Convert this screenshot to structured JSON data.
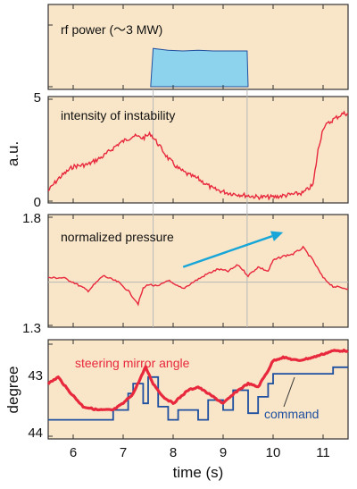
{
  "colors": {
    "panel_bg": "#f9e6c8",
    "red": "#e8283c",
    "blue": "#1f4fa0",
    "fill_blue": "#8ed3ee",
    "arrow": "#18a6d8",
    "guide": "#b8b8b8"
  },
  "chart_data": [
    {
      "type": "area",
      "annotation": "rf power (〜3 MW)",
      "xlim": [
        5.5,
        11.5
      ],
      "ylim": [
        0,
        5
      ],
      "series": [
        {
          "x": [
            7.55,
            7.6,
            7.9,
            8.2,
            8.5,
            8.8,
            9.2,
            9.48,
            9.5
          ],
          "y": [
            0,
            3.1,
            2.95,
            2.9,
            2.95,
            2.9,
            2.9,
            2.9,
            0
          ]
        }
      ]
    },
    {
      "type": "line",
      "annotation": "intensity of instability",
      "ylabel": "a.u.",
      "xlim": [
        5.5,
        11.5
      ],
      "ylim": [
        0,
        5
      ],
      "yticks": [
        "5",
        "0"
      ],
      "series": [
        {
          "x": [
            5.5,
            5.7,
            6.0,
            6.3,
            6.6,
            6.9,
            7.2,
            7.4,
            7.55,
            7.7,
            7.9,
            8.1,
            8.3,
            8.5,
            8.8,
            9.1,
            9.4,
            9.7,
            10.0,
            10.3,
            10.6,
            10.8,
            10.9,
            11.0,
            11.2,
            11.4,
            11.5
          ],
          "y": [
            0.5,
            1.1,
            1.7,
            1.8,
            2.2,
            2.8,
            3.2,
            3.1,
            3.3,
            2.8,
            2.1,
            1.6,
            1.3,
            1.1,
            0.6,
            0.4,
            0.3,
            0.2,
            0.2,
            0.3,
            0.4,
            0.8,
            2.5,
            3.6,
            4.0,
            4.3,
            4.3
          ]
        }
      ]
    },
    {
      "type": "line",
      "annotation": "normalized pressure",
      "xlim": [
        5.5,
        11.5
      ],
      "ylim": [
        1.3,
        1.8
      ],
      "yticks": [
        "1.8",
        "1.3"
      ],
      "series": [
        {
          "x": [
            5.5,
            5.8,
            6.0,
            6.3,
            6.6,
            6.9,
            7.1,
            7.3,
            7.4,
            7.5,
            7.7,
            7.9,
            8.0,
            8.2,
            8.4,
            8.7,
            8.9,
            9.1,
            9.3,
            9.5,
            9.7,
            9.9,
            10.0,
            10.2,
            10.4,
            10.6,
            10.8,
            11.0,
            11.2,
            11.5
          ],
          "y": [
            1.52,
            1.52,
            1.5,
            1.46,
            1.53,
            1.5,
            1.46,
            1.4,
            1.47,
            1.49,
            1.48,
            1.51,
            1.49,
            1.47,
            1.5,
            1.54,
            1.56,
            1.55,
            1.58,
            1.53,
            1.57,
            1.55,
            1.6,
            1.62,
            1.63,
            1.66,
            1.6,
            1.52,
            1.48,
            1.47
          ]
        }
      ],
      "arrow": {
        "from": [
          8.2,
          1.57
        ],
        "to": [
          10.2,
          1.73
        ]
      }
    },
    {
      "type": "line",
      "ylabel": "degree",
      "xlabel": "time (s)",
      "xlim": [
        5.5,
        11.5
      ],
      "ylim": [
        44,
        42.6
      ],
      "yticks": [
        "43",
        "44"
      ],
      "xticks": [
        6,
        7,
        8,
        9,
        10,
        11
      ],
      "series": [
        {
          "name": "steering mirror angle",
          "x": [
            5.5,
            5.7,
            5.9,
            6.2,
            6.5,
            6.8,
            7.0,
            7.2,
            7.45,
            7.6,
            7.8,
            8.0,
            8.3,
            8.5,
            8.8,
            9.0,
            9.3,
            9.5,
            9.7,
            9.9,
            10.0,
            10.2,
            10.5,
            10.8,
            11.0,
            11.2,
            11.5
          ],
          "y": [
            43.2,
            43.1,
            43.3,
            43.55,
            43.6,
            43.6,
            43.5,
            43.35,
            42.95,
            43.2,
            43.4,
            43.5,
            43.3,
            43.25,
            43.4,
            43.5,
            43.3,
            43.2,
            43.25,
            43.0,
            42.85,
            42.8,
            42.85,
            42.8,
            42.75,
            42.7,
            42.7
          ]
        },
        {
          "name": "command",
          "x": [
            5.5,
            6.7,
            6.8,
            7.1,
            7.2,
            7.4,
            7.5,
            7.7,
            7.9,
            8.1,
            8.5,
            8.7,
            9.0,
            9.2,
            9.5,
            9.7,
            9.9,
            10.0,
            10.3,
            10.6,
            11.0,
            11.2,
            11.5
          ],
          "y": [
            43.75,
            43.75,
            43.6,
            43.35,
            43.2,
            43.5,
            43.1,
            43.55,
            43.75,
            43.6,
            43.75,
            43.45,
            43.6,
            43.3,
            43.65,
            43.4,
            43.2,
            43.05,
            43.05,
            43.05,
            43.05,
            42.95,
            42.95
          ]
        }
      ]
    }
  ]
}
